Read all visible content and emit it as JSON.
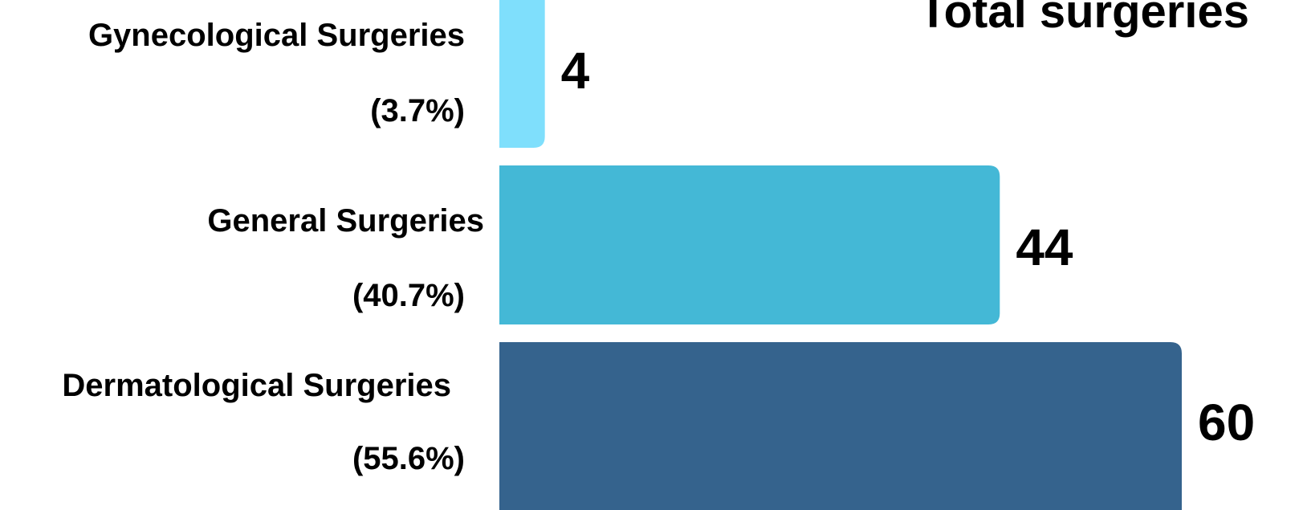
{
  "chart_data": {
    "type": "bar",
    "orientation": "horizontal",
    "title": "Total surgeries",
    "categories": [
      "Gynecological Surgeries",
      "General Surgeries",
      "Dermatological Surgeries"
    ],
    "percent_labels": [
      "(3.7%)",
      "(40.7%)",
      "(55.6%)"
    ],
    "values": [
      4,
      44,
      60
    ],
    "colors": [
      "#7fdffc",
      "#44b8d6",
      "#35638d"
    ],
    "xlim": [
      0,
      60
    ],
    "grid": false,
    "legend": "none"
  }
}
